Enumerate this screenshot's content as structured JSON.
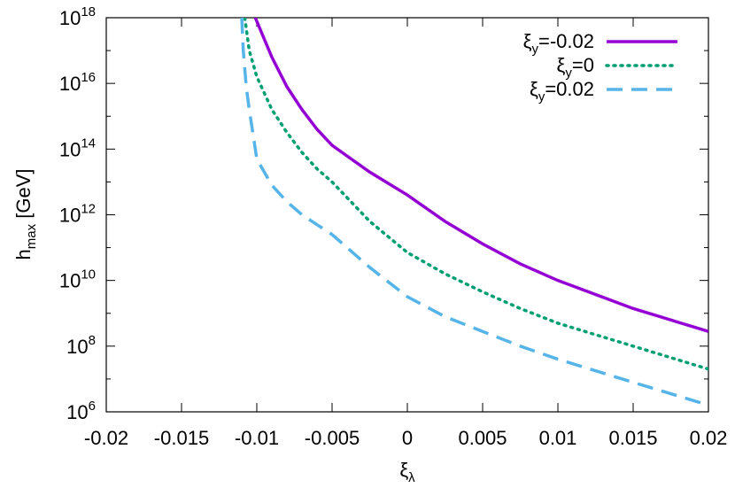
{
  "chart_data": {
    "type": "line",
    "xlabel": {
      "text": "ξ",
      "sub": "λ"
    },
    "ylabel": {
      "text": "h",
      "sub": "max",
      "suffix": " [GeV]"
    },
    "xlim": [
      -0.02,
      0.02
    ],
    "xticks": [
      -0.02,
      -0.015,
      -0.01,
      -0.005,
      0,
      0.005,
      0.01,
      0.015,
      0.02
    ],
    "ylim": [
      1000000,
      1000000000000000000
    ],
    "yscale": "log",
    "yticks": [
      {
        "value": 1000000,
        "label": "10",
        "exponent": "6"
      },
      {
        "value": 100000000,
        "label": "10",
        "exponent": "8"
      },
      {
        "value": 10000000000,
        "label": "10",
        "exponent": "10"
      },
      {
        "value": 1000000000000,
        "label": "10",
        "exponent": "12"
      },
      {
        "value": 100000000000000,
        "label": "10",
        "exponent": "14"
      },
      {
        "value": 10000000000000000,
        "label": "10",
        "exponent": "16"
      },
      {
        "value": 1000000000000000000,
        "label": "10",
        "exponent": "18"
      }
    ],
    "legend": "top-right",
    "series": [
      {
        "name": {
          "text": "ξ",
          "sub": "y",
          "suffix": "=-0.02"
        },
        "color": "#9400d3",
        "style": "solid",
        "x": [
          -0.0101,
          -0.009,
          -0.008,
          -0.007,
          -0.006,
          -0.005,
          -0.0025,
          0,
          0.0025,
          0.005,
          0.0075,
          0.01,
          0.015,
          0.02
        ],
        "values": [
          1e+18,
          6.3e+16,
          7900000000000000.0,
          1600000000000000.0,
          400000000000000.0,
          130000000000000.0,
          20000000000000.0,
          4000000000000.0,
          630000000000.0,
          130000000000.0,
          32000000000.0,
          10000000000.0,
          1400000000.0,
          280000000.0
        ]
      },
      {
        "name": {
          "text": "ξ",
          "sub": "y",
          "suffix": "=0"
        },
        "color": "#009e73",
        "style": "dotted",
        "x": [
          -0.0108,
          -0.0105,
          -0.01,
          -0.009,
          -0.008,
          -0.007,
          -0.006,
          -0.005,
          -0.0025,
          0,
          0.0025,
          0.005,
          0.0075,
          0.01,
          0.015,
          0.02
        ],
        "values": [
          1e+18,
          1e+17,
          1.6e+16,
          1600000000000000.0,
          320000000000000.0,
          79000000000000.0,
          25000000000000.0,
          10000000000000.0,
          630000000000.0,
          71000000000.0,
          16000000000.0,
          4500000000.0,
          1400000000.0,
          500000000.0,
          100000000.0,
          20000000.0
        ]
      },
      {
        "name": {
          "text": "ξ",
          "sub": "y",
          "suffix": "=0.02"
        },
        "color": "#56b4e9",
        "style": "dashed",
        "x": [
          -0.011,
          -0.0109,
          -0.0107,
          -0.0105,
          -0.01,
          -0.009,
          -0.008,
          -0.007,
          -0.006,
          -0.005,
          -0.0025,
          0,
          0.0025,
          0.005,
          0.0075,
          0.01,
          0.015,
          0.02
        ],
        "values": [
          1e+18,
          1e+17,
          7900000000000000.0,
          1600000000000000.0,
          50000000000000.0,
          7900000000000.0,
          2500000000000.0,
          1000000000000.0,
          500000000000.0,
          250000000000.0,
          25000000000.0,
          3200000000.0,
          790000000.0,
          280000000.0,
          100000000.0,
          40000000.0,
          7900000.0,
          1600000.0
        ]
      }
    ]
  }
}
